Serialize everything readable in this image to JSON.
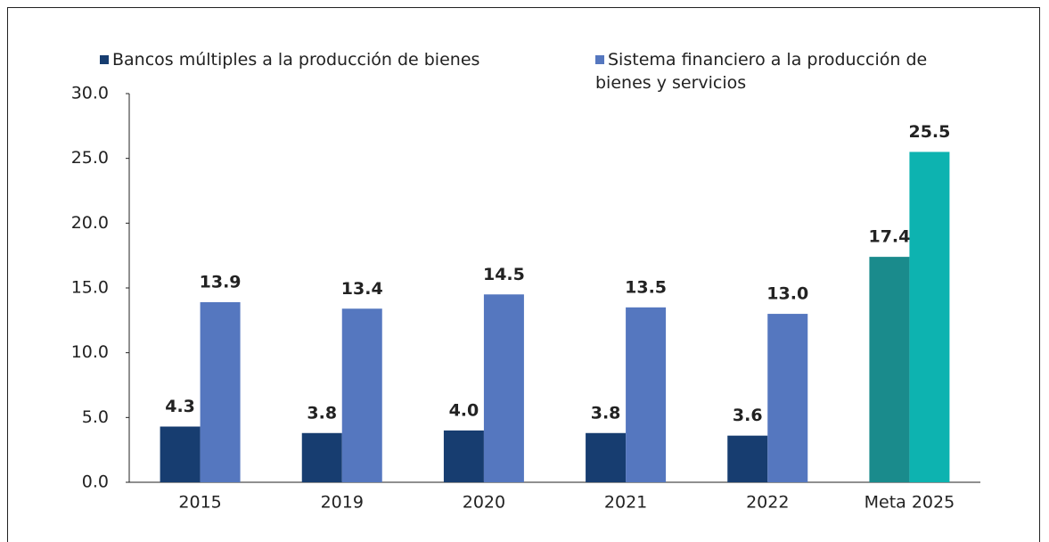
{
  "chart_data": {
    "type": "bar",
    "categories": [
      "2015",
      "2019",
      "2020",
      "2021",
      "2022",
      "Meta 2025"
    ],
    "series": [
      {
        "name": "Bancos múltiples a la producción de bienes",
        "color": "#173d70",
        "colors": [
          "#173d70",
          "#173d70",
          "#173d70",
          "#173d70",
          "#173d70",
          "#1a8b8c"
        ],
        "values": [
          4.3,
          3.8,
          4.0,
          3.8,
          3.6,
          17.4
        ],
        "value_labels": [
          "4.3",
          "3.8",
          "4.0",
          "3.8",
          "3.6",
          "17.4"
        ]
      },
      {
        "name": "Sistema financiero a la producción de bienes y servicios",
        "color": "#5577bf",
        "colors": [
          "#5577bf",
          "#5577bf",
          "#5577bf",
          "#5577bf",
          "#5577bf",
          "#0db3b0"
        ],
        "values": [
          13.9,
          13.4,
          14.5,
          13.5,
          13.0,
          25.5
        ],
        "value_labels": [
          "13.9",
          "13.4",
          "14.5",
          "13.5",
          "13.0",
          "25.5"
        ]
      }
    ],
    "ylim": [
      0,
      30
    ],
    "yticks": [
      {
        "value": 0,
        "label": "0.0"
      },
      {
        "value": 5,
        "label": "5.0"
      },
      {
        "value": 10,
        "label": "10.0"
      },
      {
        "value": 15,
        "label": "15.0"
      },
      {
        "value": 20,
        "label": "20.0"
      },
      {
        "value": 25,
        "label": "25.0"
      },
      {
        "value": 30,
        "label": "30.0"
      }
    ],
    "grid": false,
    "legend": "top"
  }
}
